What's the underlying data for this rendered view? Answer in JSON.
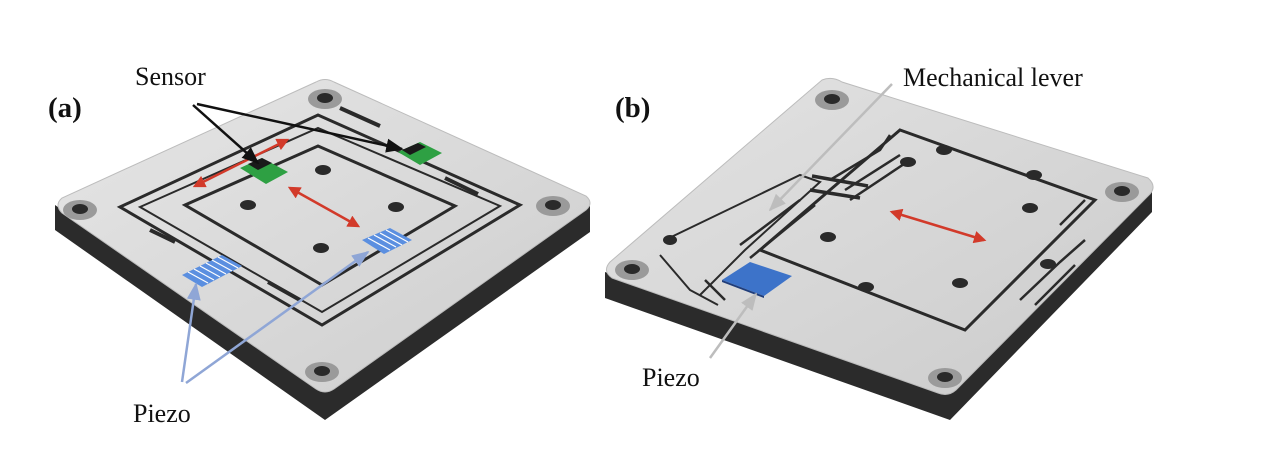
{
  "panels": [
    {
      "id": "a",
      "label": "(a)"
    },
    {
      "id": "b",
      "label": "(b)"
    }
  ],
  "annotations": {
    "a_sensor": "Sensor",
    "a_piezo": "Piezo",
    "b_lever": "Mechanical lever",
    "b_piezo": "Piezo"
  },
  "colors": {
    "plate_top": "#d8d8d8",
    "plate_side": "#2b2b2b",
    "slot": "#2a2a2a",
    "sensor": "#2ea043",
    "piezo_a": "#5b8fe0",
    "piezo_b": "#3d73c9",
    "arrow_motion": "#d23a2a",
    "arrow_sensor": "#111111",
    "arrow_piezo": "#8fa6d6",
    "arrow_lever": "#bdbdbd"
  }
}
